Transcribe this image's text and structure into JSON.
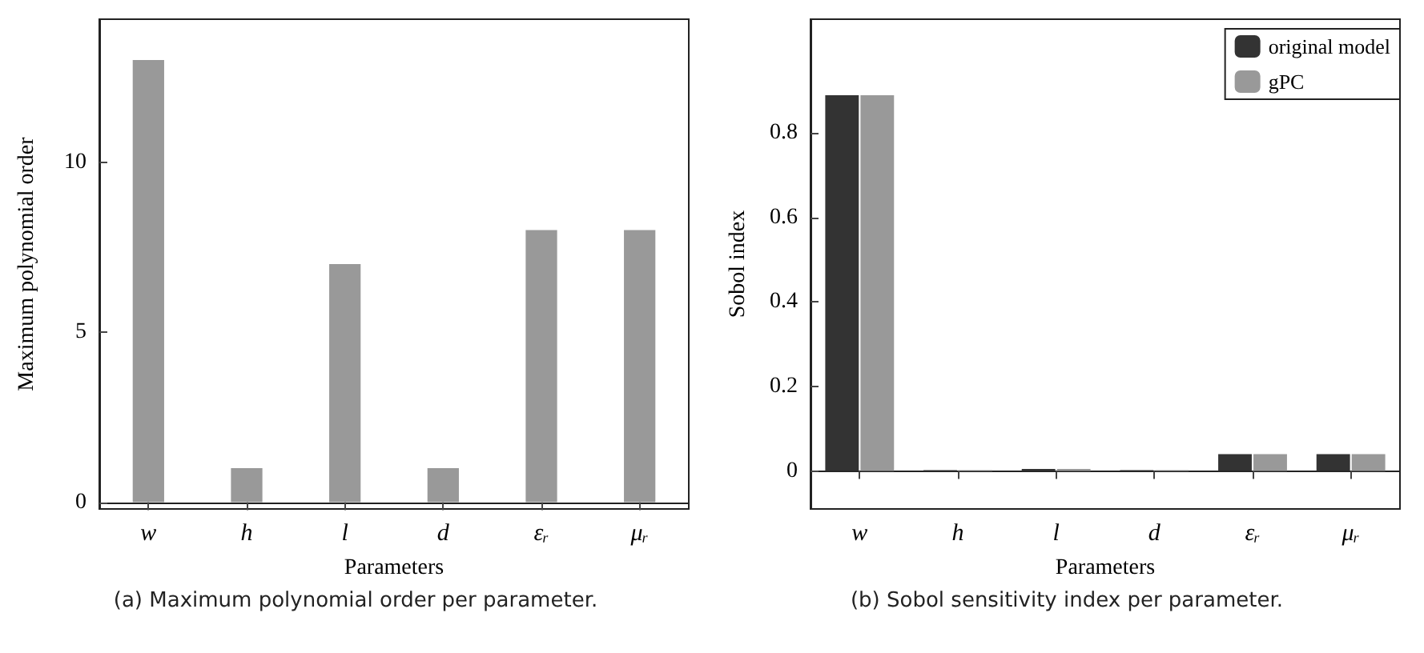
{
  "chart_data": [
    {
      "type": "bar",
      "xlabel": "Parameters",
      "ylabel": "Maximum polynomial order",
      "categories": [
        "w",
        "h",
        "l",
        "d",
        "εᵣ",
        "μᵣ"
      ],
      "values": [
        13,
        1,
        7,
        1,
        8,
        8
      ],
      "color": "#999999",
      "ylim": [
        -0.2,
        14.2
      ],
      "yticks": [
        0,
        5,
        10
      ],
      "annotations": [
        "(a) Maximum polynomial order per parameter."
      ]
    },
    {
      "type": "bar",
      "xlabel": "Parameters",
      "ylabel": "Sobol index",
      "categories": [
        "w",
        "h",
        "l",
        "d",
        "εᵣ",
        "μᵣ"
      ],
      "series": [
        {
          "name": "original model",
          "color": "#333333",
          "values": [
            0.89,
            0.002,
            0.005,
            0.002,
            0.04,
            0.04
          ]
        },
        {
          "name": "gPC",
          "color": "#999999",
          "values": [
            0.89,
            0.002,
            0.005,
            0.002,
            0.04,
            0.04
          ]
        }
      ],
      "ylim": [
        -0.09,
        1.07
      ],
      "yticks": [
        0,
        0.2,
        0.4,
        0.6,
        0.8
      ],
      "legend": "top right",
      "annotations": [
        "(b) Sobol sensitivity index per parameter."
      ]
    }
  ]
}
